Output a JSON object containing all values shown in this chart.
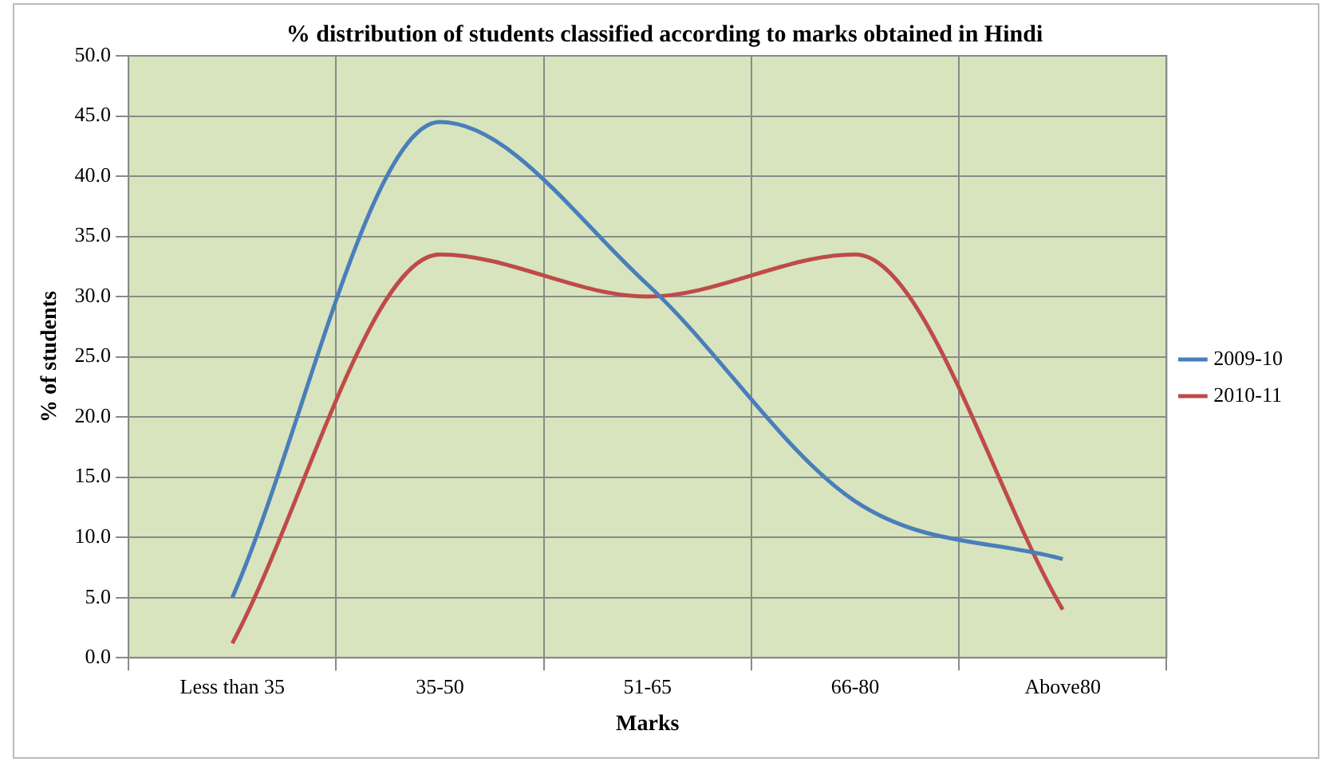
{
  "chart_data": {
    "type": "line",
    "title": "% distribution of students classified according to marks obtained in Hindi",
    "xlabel": "Marks",
    "ylabel": "% of students",
    "categories": [
      "Less than 35",
      "35-50",
      "51-65",
      "66-80",
      "Above80"
    ],
    "series": [
      {
        "name": "2009-10",
        "color": "#4a7ebb",
        "values": [
          5.0,
          44.5,
          31.0,
          13.0,
          8.2
        ]
      },
      {
        "name": "2010-11",
        "color": "#be4b48",
        "values": [
          1.2,
          33.5,
          30.0,
          33.5,
          4.0
        ]
      }
    ],
    "ylim": [
      0,
      50
    ],
    "yticks": [
      {
        "value": 0,
        "label": "0.0"
      },
      {
        "value": 5,
        "label": "5.0"
      },
      {
        "value": 10,
        "label": "10.0"
      },
      {
        "value": 15,
        "label": "15.0"
      },
      {
        "value": 20,
        "label": "20.0"
      },
      {
        "value": 25,
        "label": "25.0"
      },
      {
        "value": 30,
        "label": "30.0"
      },
      {
        "value": 35,
        "label": "35.0"
      },
      {
        "value": 40,
        "label": "40.0"
      },
      {
        "value": 45,
        "label": "45.0"
      },
      {
        "value": 50,
        "label": "50.0"
      }
    ],
    "grid": true,
    "legend": "right",
    "marker": "none",
    "line_style": "solid"
  }
}
